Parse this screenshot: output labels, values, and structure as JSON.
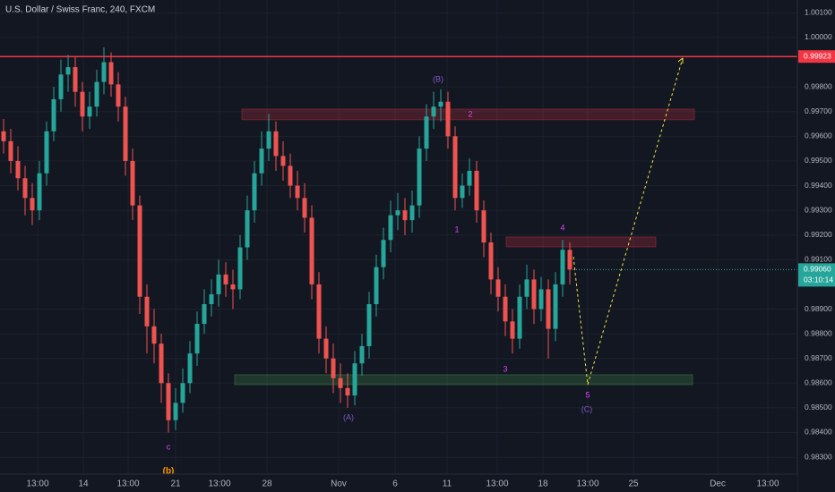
{
  "chart_data": {
    "type": "candlestick",
    "title": "U.S. Dollar / Swiss Franc, 240, FXCM",
    "up_color": "#26a69a",
    "down_color": "#ef5350",
    "ylim": [
      0.98159,
      1.00152
    ],
    "yticks": [
      {
        "value": 1.001,
        "label": "1.00100"
      },
      {
        "value": 1.0,
        "label": "1.00000"
      },
      {
        "value": 0.998,
        "label": "0.99800"
      },
      {
        "value": 0.997,
        "label": "0.99700"
      },
      {
        "value": 0.996,
        "label": "0.99600"
      },
      {
        "value": 0.995,
        "label": "0.99500"
      },
      {
        "value": 0.994,
        "label": "0.99400"
      },
      {
        "value": 0.993,
        "label": "0.99300"
      },
      {
        "value": 0.992,
        "label": "0.99200"
      },
      {
        "value": 0.991,
        "label": "0.99100"
      },
      {
        "value": 0.989,
        "label": "0.98900"
      },
      {
        "value": 0.988,
        "label": "0.98800"
      },
      {
        "value": 0.987,
        "label": "0.98700"
      },
      {
        "value": 0.986,
        "label": "0.98600"
      },
      {
        "value": 0.985,
        "label": "0.98500"
      },
      {
        "value": 0.984,
        "label": "0.98400"
      },
      {
        "value": 0.983,
        "label": "0.98300"
      }
    ],
    "time_labels": [
      "13:00",
      "14",
      "13:00",
      "21",
      "13:00",
      "28",
      "Nov",
      "6",
      "11",
      "13:00",
      "18",
      "13:00",
      "25",
      "Dec",
      "13:00"
    ],
    "candles": [
      [
        0.9962,
        0.9967,
        0.9953,
        0.9958
      ],
      [
        0.9958,
        0.9963,
        0.9945,
        0.995
      ],
      [
        0.995,
        0.9956,
        0.9938,
        0.9943
      ],
      [
        0.9943,
        0.9948,
        0.9928,
        0.9935
      ],
      [
        0.9935,
        0.9941,
        0.9924,
        0.993
      ],
      [
        0.993,
        0.995,
        0.9926,
        0.9945
      ],
      [
        0.9945,
        0.9966,
        0.994,
        0.9962
      ],
      [
        0.9962,
        0.998,
        0.9958,
        0.9975
      ],
      [
        0.9975,
        0.9991,
        0.997,
        0.9985
      ],
      [
        0.9985,
        0.9993,
        0.9978,
        0.9988
      ],
      [
        0.9988,
        0.9992,
        0.9972,
        0.9978
      ],
      [
        0.9978,
        0.9982,
        0.9962,
        0.9968
      ],
      [
        0.9968,
        0.9978,
        0.9963,
        0.9972
      ],
      [
        0.9972,
        0.9987,
        0.9968,
        0.9982
      ],
      [
        0.9982,
        0.9996,
        0.9977,
        0.999
      ],
      [
        0.999,
        0.9994,
        0.9976,
        0.9981
      ],
      [
        0.9981,
        0.9986,
        0.9966,
        0.9972
      ],
      [
        0.9972,
        0.9976,
        0.9944,
        0.995
      ],
      [
        0.995,
        0.9955,
        0.9926,
        0.9932
      ],
      [
        0.9932,
        0.9936,
        0.9888,
        0.9895
      ],
      [
        0.9895,
        0.99,
        0.9872,
        0.9883
      ],
      [
        0.9883,
        0.989,
        0.9868,
        0.9876
      ],
      [
        0.9876,
        0.988,
        0.9852,
        0.986
      ],
      [
        0.986,
        0.9864,
        0.984,
        0.9845
      ],
      [
        0.9845,
        0.9858,
        0.9841,
        0.9852
      ],
      [
        0.9852,
        0.9866,
        0.9848,
        0.986
      ],
      [
        0.986,
        0.9877,
        0.9856,
        0.9872
      ],
      [
        0.9872,
        0.9889,
        0.9867,
        0.9884
      ],
      [
        0.9884,
        0.9898,
        0.988,
        0.9892
      ],
      [
        0.9892,
        0.9902,
        0.9887,
        0.9896
      ],
      [
        0.9896,
        0.991,
        0.9891,
        0.9904
      ],
      [
        0.9904,
        0.9909,
        0.9895,
        0.99
      ],
      [
        0.99,
        0.9906,
        0.989,
        0.9898
      ],
      [
        0.9898,
        0.992,
        0.9894,
        0.9915
      ],
      [
        0.9915,
        0.9936,
        0.991,
        0.993
      ],
      [
        0.993,
        0.995,
        0.9925,
        0.9945
      ],
      [
        0.9945,
        0.9962,
        0.994,
        0.9955
      ],
      [
        0.9955,
        0.9969,
        0.995,
        0.9962
      ],
      [
        0.9962,
        0.9966,
        0.9946,
        0.9952
      ],
      [
        0.9952,
        0.9958,
        0.9942,
        0.9948
      ],
      [
        0.9948,
        0.9953,
        0.9935,
        0.994
      ],
      [
        0.994,
        0.9946,
        0.993,
        0.9935
      ],
      [
        0.9935,
        0.9941,
        0.9921,
        0.9927
      ],
      [
        0.9927,
        0.9932,
        0.9894,
        0.99
      ],
      [
        0.99,
        0.9905,
        0.9872,
        0.9878
      ],
      [
        0.9878,
        0.9883,
        0.9864,
        0.987
      ],
      [
        0.987,
        0.9876,
        0.9856,
        0.9862
      ],
      [
        0.9862,
        0.9868,
        0.9852,
        0.9858
      ],
      [
        0.9858,
        0.9864,
        0.985,
        0.9855
      ],
      [
        0.9855,
        0.9873,
        0.9851,
        0.9868
      ],
      [
        0.9868,
        0.988,
        0.9863,
        0.9875
      ],
      [
        0.9875,
        0.9897,
        0.987,
        0.9892
      ],
      [
        0.9892,
        0.9912,
        0.9887,
        0.9907
      ],
      [
        0.9907,
        0.9923,
        0.9902,
        0.9918
      ],
      [
        0.9918,
        0.9934,
        0.9913,
        0.9928
      ],
      [
        0.9928,
        0.9937,
        0.9922,
        0.993
      ],
      [
        0.993,
        0.9935,
        0.992,
        0.9926
      ],
      [
        0.9926,
        0.9938,
        0.9921,
        0.9932
      ],
      [
        0.9932,
        0.996,
        0.9927,
        0.9955
      ],
      [
        0.9955,
        0.9973,
        0.995,
        0.9968
      ],
      [
        0.9968,
        0.9978,
        0.9963,
        0.9972
      ],
      [
        0.9972,
        0.9979,
        0.9966,
        0.9974
      ],
      [
        0.9974,
        0.9978,
        0.9955,
        0.996
      ],
      [
        0.996,
        0.9964,
        0.993,
        0.9935
      ],
      [
        0.9935,
        0.9945,
        0.9931,
        0.994
      ],
      [
        0.994,
        0.9951,
        0.9936,
        0.9946
      ],
      [
        0.9946,
        0.995,
        0.9925,
        0.993
      ],
      [
        0.993,
        0.9934,
        0.9911,
        0.9917
      ],
      [
        0.9917,
        0.9921,
        0.9896,
        0.9902
      ],
      [
        0.9902,
        0.9907,
        0.9889,
        0.9895
      ],
      [
        0.9895,
        0.99,
        0.9879,
        0.9885
      ],
      [
        0.9885,
        0.989,
        0.9872,
        0.9878
      ],
      [
        0.9878,
        0.99,
        0.9874,
        0.9895
      ],
      [
        0.9895,
        0.9908,
        0.989,
        0.9902
      ],
      [
        0.9902,
        0.9906,
        0.9884,
        0.989
      ],
      [
        0.989,
        0.9903,
        0.9885,
        0.9898
      ],
      [
        0.9898,
        0.9902,
        0.987,
        0.9882
      ],
      [
        0.9882,
        0.9905,
        0.9877,
        0.99
      ],
      [
        0.99,
        0.9918,
        0.9895,
        0.9914
      ],
      [
        0.9914,
        0.9917,
        0.99,
        0.9906
      ]
    ],
    "zones": [
      {
        "high": 0.9971,
        "low": 0.99667,
        "color": "#f23645"
      },
      {
        "high": 0.99192,
        "low": 0.99152,
        "color": "#f23645"
      },
      {
        "high": 0.98634,
        "low": 0.98594,
        "color": "#4caf50"
      }
    ],
    "hline": {
      "value": 0.99923,
      "color": "#f23645"
    },
    "last_price": {
      "value": 0.9906,
      "label": "0.99060",
      "countdown": "03:10:14",
      "color": "#26a69a"
    },
    "projection": {
      "values": [
        0.99112,
        0.98594,
        0.99917
      ],
      "color": "#f5e642"
    },
    "wave_labels": [
      {
        "text": "(B)",
        "color": "#7e57c2"
      },
      {
        "text": "2",
        "color": "#e040fb"
      },
      {
        "text": "1",
        "color": "#e040fb"
      },
      {
        "text": "3",
        "color": "#e040fb"
      },
      {
        "text": "4",
        "color": "#e040fb"
      },
      {
        "text": "5",
        "color": "#e040fb"
      },
      {
        "text": "(C)",
        "color": "#7e57c2"
      },
      {
        "text": "(A)",
        "color": "#7e57c2"
      },
      {
        "text": "c",
        "color": "#e040fb"
      },
      {
        "text": "(b)",
        "color": "#ff9800"
      }
    ]
  }
}
